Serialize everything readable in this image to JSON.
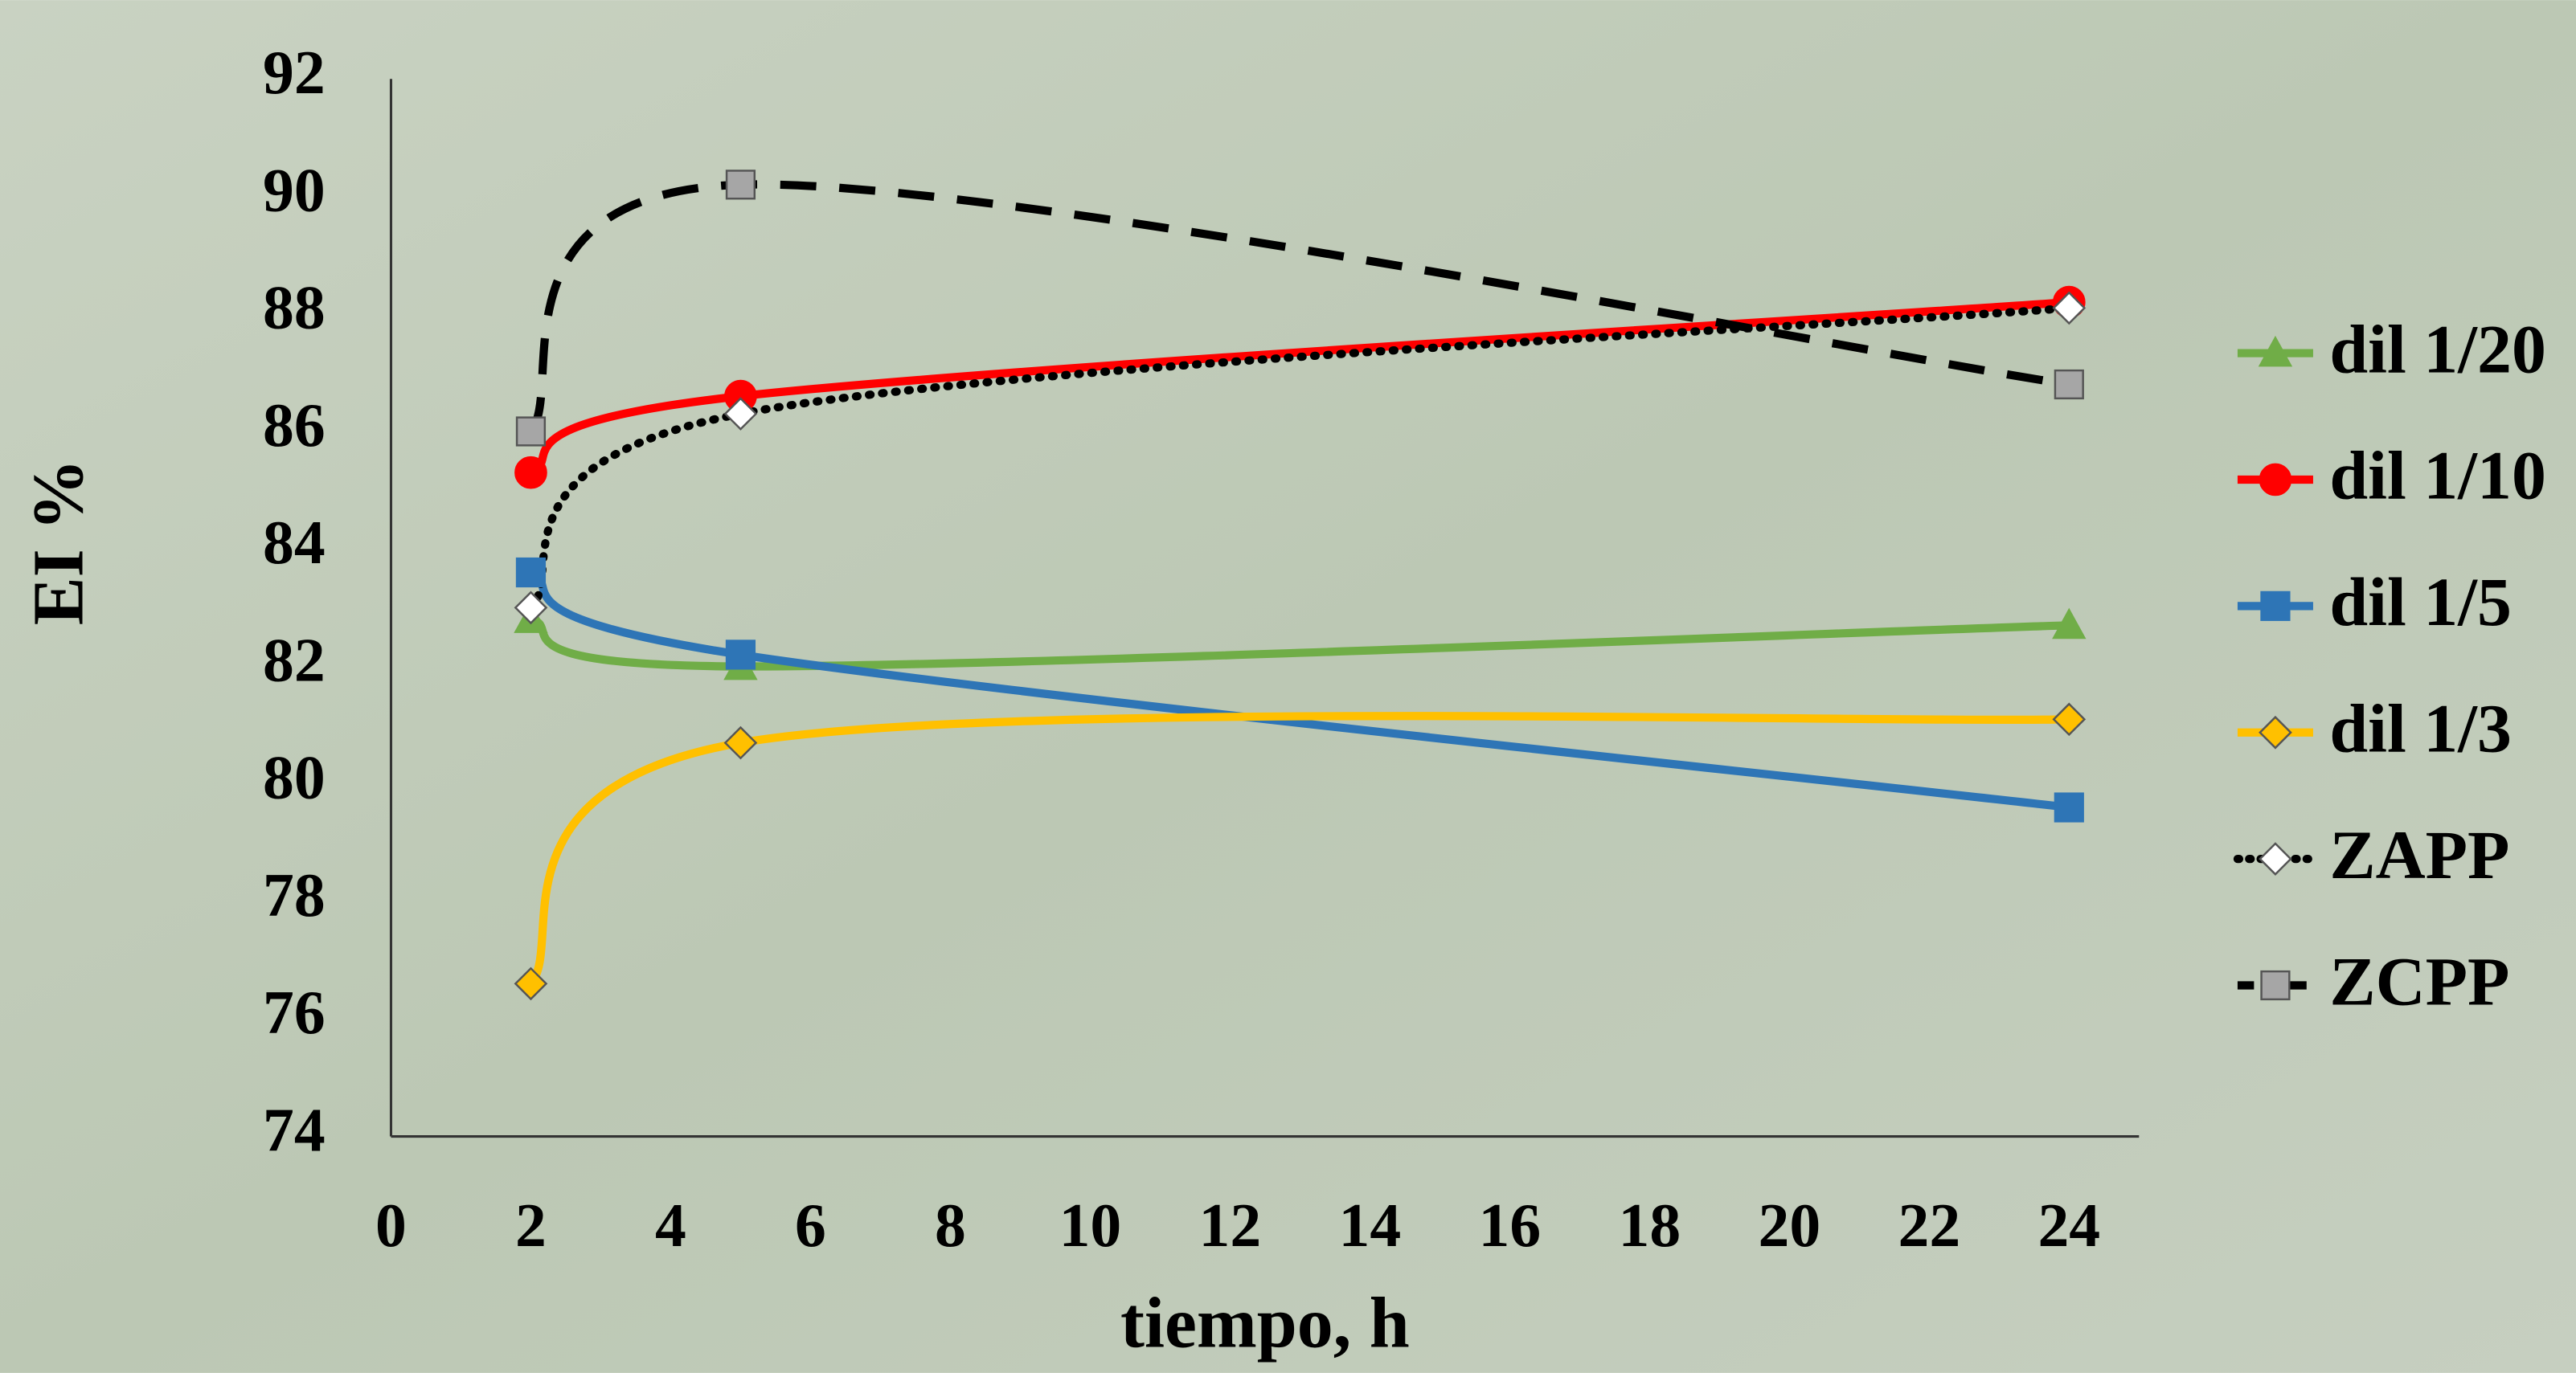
{
  "chart_data": {
    "type": "line",
    "x": [
      2,
      5,
      24
    ],
    "xlabel": "tiempo, h",
    "ylabel": "EI %",
    "xlim": [
      0,
      25
    ],
    "xticks": [
      0,
      2,
      4,
      6,
      8,
      10,
      12,
      14,
      16,
      18,
      20,
      22,
      24
    ],
    "ylim": [
      74,
      92
    ],
    "yticks": [
      74,
      76,
      78,
      80,
      82,
      84,
      86,
      88,
      90,
      92
    ],
    "grid": false,
    "legend": "right",
    "smooth": true,
    "series": [
      {
        "name": "dil 1/20",
        "color": "#70ad47",
        "marker": "triangle",
        "marker_fill": "#70ad47",
        "line_style": "solid",
        "values": [
          82.8,
          82.0,
          82.7
        ]
      },
      {
        "name": "dil 1/10",
        "color": "#ff0000",
        "marker": "circle",
        "marker_fill": "#ff0000",
        "line_style": "solid",
        "values": [
          85.3,
          86.6,
          88.2
        ]
      },
      {
        "name": "dil 1/5",
        "color": "#2e75b6",
        "marker": "square",
        "marker_fill": "#2e75b6",
        "line_style": "solid",
        "values": [
          83.6,
          82.2,
          79.6
        ]
      },
      {
        "name": "dil 1/3",
        "color": "#ffc000",
        "marker": "diamond",
        "marker_fill": "#ffc000",
        "line_style": "solid",
        "values": [
          76.6,
          80.7,
          81.1
        ]
      },
      {
        "name": "ZAPP",
        "color": "#000000",
        "marker": "diamond",
        "marker_fill": "#ffffff",
        "line_style": "dotted",
        "values": [
          83.0,
          86.3,
          88.1
        ]
      },
      {
        "name": "ZCPP",
        "color": "#000000",
        "marker": "square",
        "marker_fill": "#a6a6a6",
        "line_style": "dashed",
        "values": [
          86.0,
          90.2,
          86.8
        ]
      }
    ]
  }
}
